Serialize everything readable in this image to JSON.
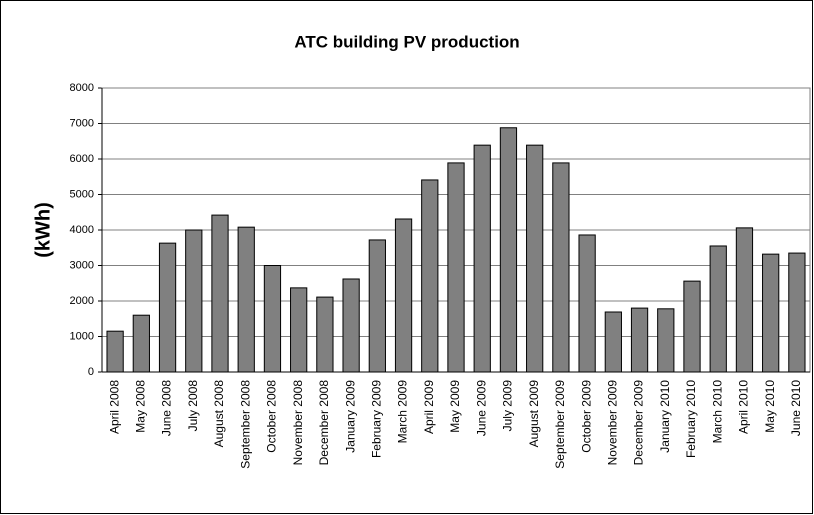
{
  "chart_data": {
    "type": "bar",
    "title": "ATC building PV production",
    "y_label": "(kWh)",
    "categories": [
      "April 2008",
      "May 2008",
      "June 2008",
      "July 2008",
      "August 2008",
      "September 2008",
      "October 2008",
      "November 2008",
      "December 2008",
      "January 2009",
      "February 2009",
      "March 2009",
      "April 2009",
      "May 2009",
      "June 2009",
      "July 2009",
      "August 2009",
      "September 2009",
      "October 2009",
      "November 2009",
      "December 2009",
      "January 2010",
      "February 2010",
      "March 2010",
      "April 2010",
      "May 2010",
      "June 2010"
    ],
    "values": [
      1150,
      1600,
      3630,
      4000,
      4420,
      4080,
      3000,
      2370,
      2110,
      2620,
      3720,
      4310,
      5410,
      5890,
      6390,
      6880,
      6390,
      5890,
      3860,
      1690,
      1800,
      1780,
      2560,
      3550,
      4060,
      3320,
      3350
    ],
    "color": "#808080",
    "ylim": [
      0,
      8000
    ],
    "yticks": [
      0,
      1000,
      2000,
      3000,
      4000,
      5000,
      6000,
      7000,
      8000
    ],
    "grid": true
  }
}
